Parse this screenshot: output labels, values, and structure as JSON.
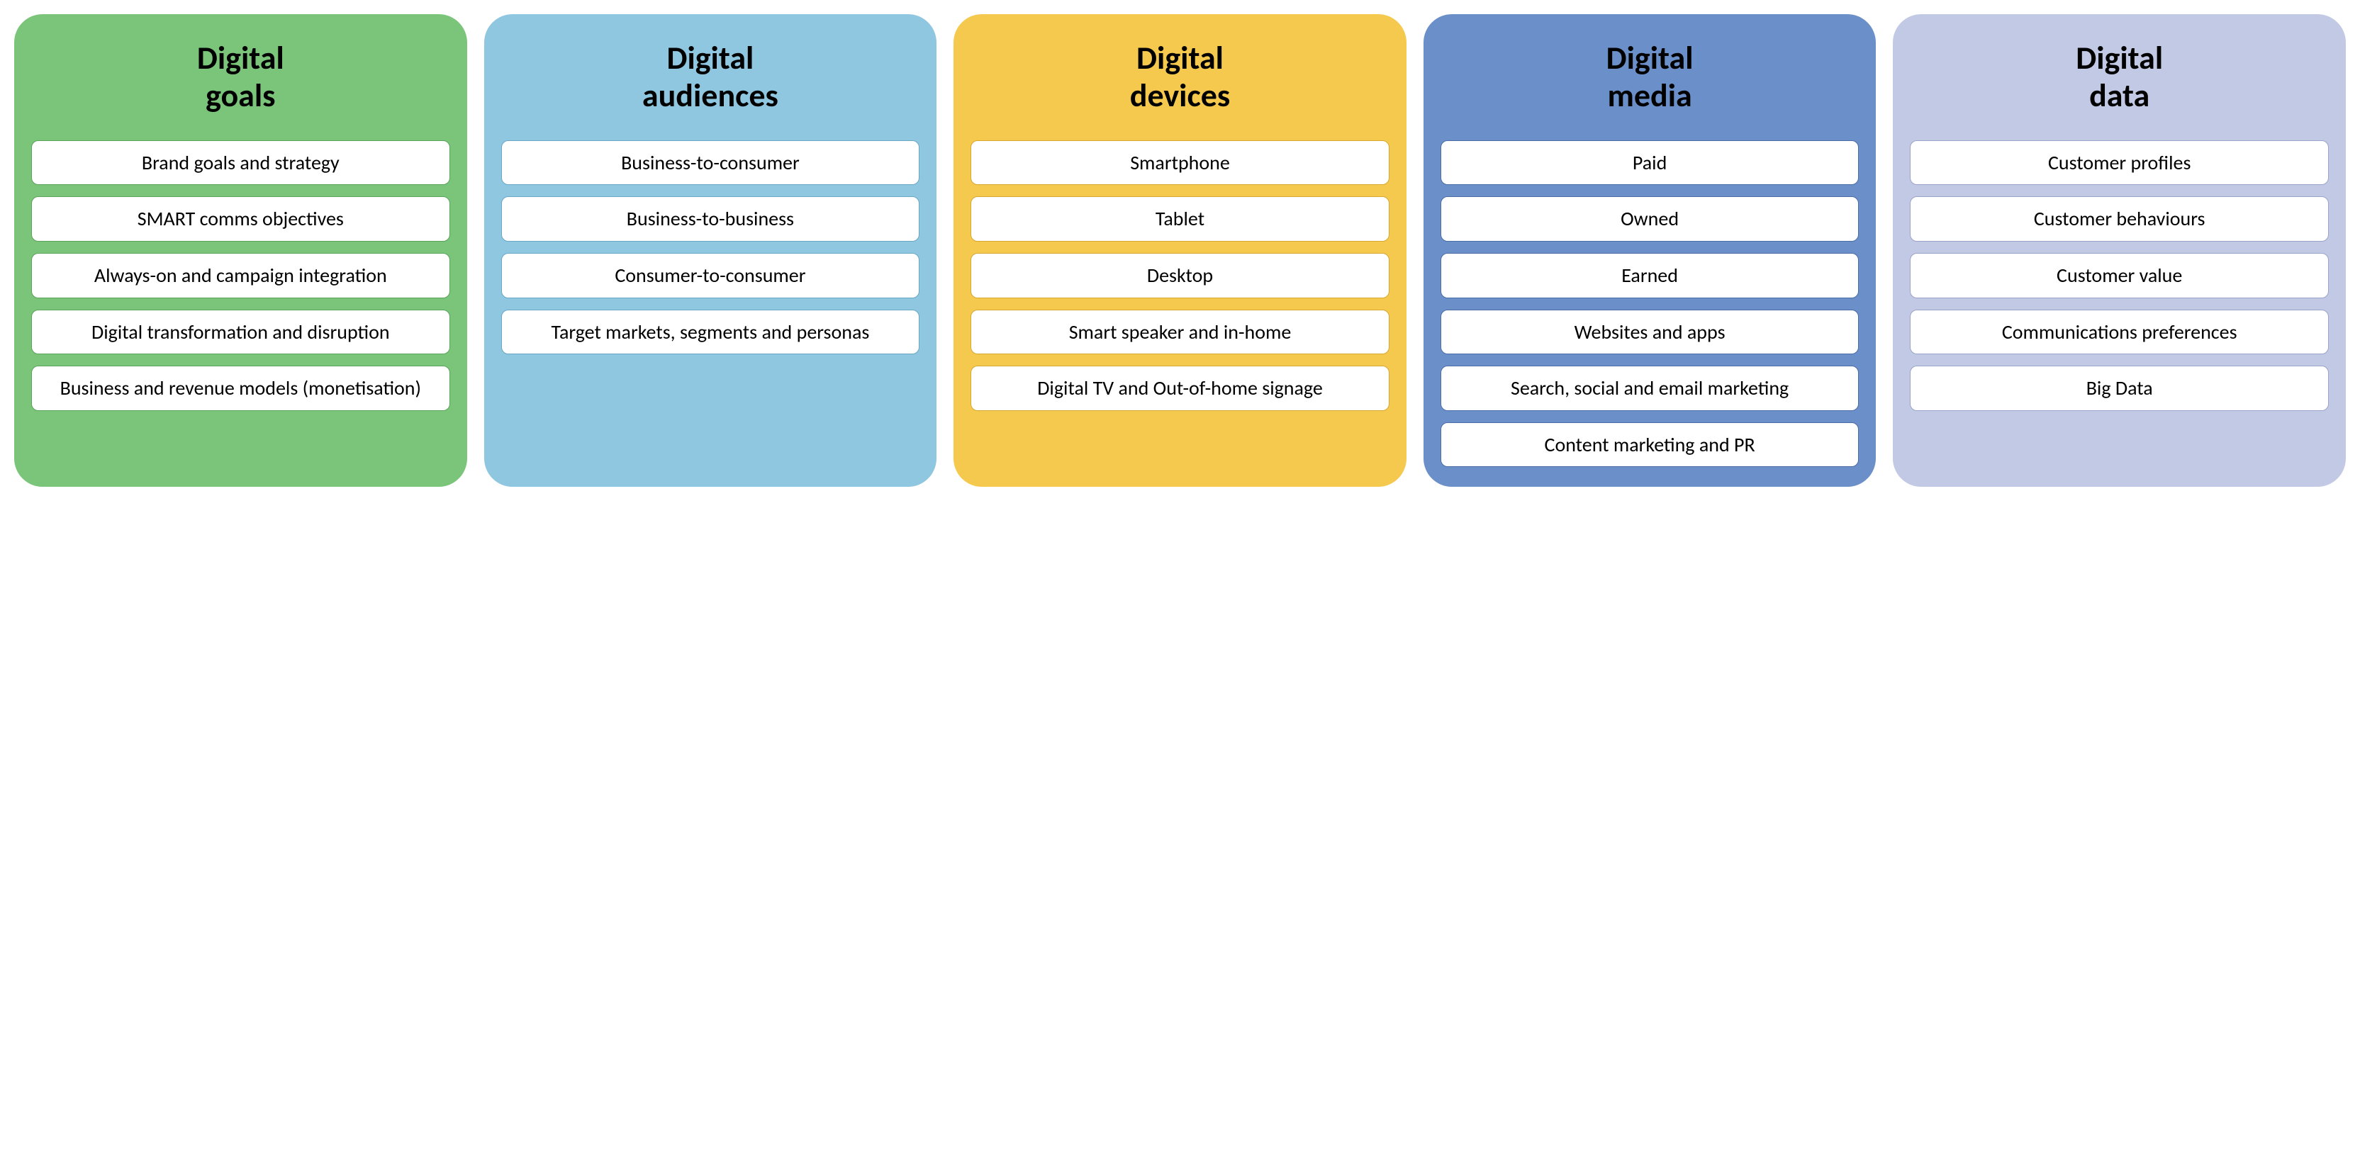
{
  "layout": {
    "background_color": "#ffffff",
    "column_gap": 24,
    "column_border_radius": 40,
    "item_border_radius": 10,
    "item_background": "#ffffff",
    "item_border_width": 1.5,
    "item_font_size": 28,
    "item_text_color": "#000000",
    "title_font_size": 46,
    "title_font_weight": 700
  },
  "columns": [
    {
      "id": "digital-goals",
      "title": "Digital\ngoals",
      "background_color": "#7ac57a",
      "title_color": "#000000",
      "item_border_color": "#5aa35a",
      "items": [
        "Brand goals and strategy",
        "SMART comms objectives",
        "Always-on and campaign integration",
        "Digital transformation and disruption",
        "Business and revenue models (monetisation)"
      ]
    },
    {
      "id": "digital-audiences",
      "title": "Digital\naudiences",
      "background_color": "#8fc6e0",
      "title_color": "#000000",
      "item_border_color": "#6aa7c4",
      "items": [
        "Business-to-consumer",
        "Business-to-business",
        "Consumer-to-consumer",
        "Target markets, segments and personas"
      ]
    },
    {
      "id": "digital-devices",
      "title": "Digital\ndevices",
      "background_color": "#f5c94d",
      "title_color": "#000000",
      "item_border_color": "#d6a82f",
      "items": [
        "Smartphone",
        "Tablet",
        "Desktop",
        "Smart speaker and in-home",
        "Digital TV and Out-of-home signage"
      ]
    },
    {
      "id": "digital-media",
      "title": "Digital\nmedia",
      "background_color": "#6b8fc9",
      "title_color": "#000000",
      "item_border_color": "#4a6da8",
      "items": [
        "Paid",
        "Owned",
        "Earned",
        "Websites and apps",
        "Search, social and email marketing",
        "Content marketing and PR"
      ]
    },
    {
      "id": "digital-data",
      "title": "Digital\ndata",
      "background_color": "#c2c9e4",
      "title_color": "#000000",
      "item_border_color": "#9aa3c9",
      "items": [
        "Customer profiles",
        "Customer behaviours",
        "Customer value",
        "Communications preferences",
        "Big Data"
      ]
    }
  ]
}
